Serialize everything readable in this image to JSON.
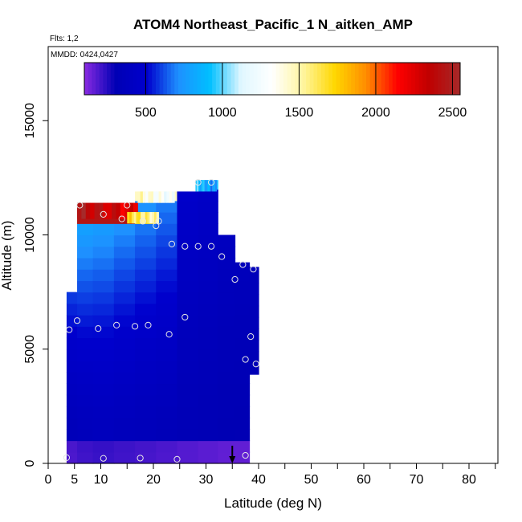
{
  "chart_data": {
    "type": "heatmap",
    "title": "ATOM4 Northeast_Pacific_1 N_aitken_AMP",
    "flights_note": "Flts: 1,2",
    "date_note": "MMDD: 0424,0427",
    "xlabel": "Latitude (deg N)",
    "ylabel": "Altitude (m)",
    "xlim": [
      0,
      85
    ],
    "ylim": [
      0,
      18000
    ],
    "x_ticks": [
      0,
      5,
      10,
      20,
      30,
      40,
      50,
      60,
      70,
      80
    ],
    "x_minor_ticks": [
      15,
      25,
      35,
      45,
      55,
      65,
      75,
      85
    ],
    "y_ticks": [
      0,
      5000,
      10000,
      15000
    ],
    "colorbar": {
      "min": 100,
      "max": 2550,
      "ticks": [
        500,
        1000,
        1500,
        2000,
        2500
      ],
      "colors": [
        "#8a2be2",
        "#0000b4",
        "#0000cd",
        "#1e90ff",
        "#00bfff",
        "#e0f7ff",
        "#ffffff",
        "#fff59d",
        "#ffd700",
        "#ff8c00",
        "#ff0000",
        "#c00000",
        "#a52a2a"
      ]
    },
    "columns": [
      {
        "lat": 4.5,
        "alt_min": 0,
        "alt_max": 7500,
        "base": 330
      },
      {
        "lat": 6.5,
        "alt_min": 0,
        "alt_max": 11400,
        "base": 350
      },
      {
        "lat": 10.5,
        "alt_min": 0,
        "alt_max": 11400,
        "base": 360
      },
      {
        "lat": 14.5,
        "alt_min": 0,
        "alt_max": 11400,
        "base": 350
      },
      {
        "lat": 18.5,
        "alt_min": 0,
        "alt_max": 11900,
        "base": 340
      },
      {
        "lat": 22.5,
        "alt_min": 0,
        "alt_max": 11900,
        "base": 330
      },
      {
        "lat": 26.5,
        "alt_min": 0,
        "alt_max": 11900,
        "base": 320
      },
      {
        "lat": 30.5,
        "alt_min": 0,
        "alt_max": 12400,
        "base": 310
      },
      {
        "lat": 34.0,
        "alt_min": 0,
        "alt_max": 10000,
        "base": 300
      },
      {
        "lat": 37.0,
        "alt_min": 0,
        "alt_max": 8800,
        "base": 300
      },
      {
        "lat": 39.5,
        "alt_min": 3900,
        "alt_max": 8600,
        "base": 300
      }
    ],
    "hotspots": [
      {
        "lat0": 5.5,
        "lat1": 17,
        "alt0": 10700,
        "alt1": 11400,
        "value": 2450
      },
      {
        "lat0": 15,
        "lat1": 21,
        "alt0": 10500,
        "alt1": 11000,
        "value": 1700
      },
      {
        "lat0": 17,
        "lat1": 24,
        "alt0": 11400,
        "alt1": 11900,
        "value": 1450
      },
      {
        "lat0": 28,
        "lat1": 32,
        "alt0": 11900,
        "alt1": 12400,
        "value": 950
      }
    ],
    "obs_points": [
      {
        "lat": 3.5,
        "alt": 250
      },
      {
        "lat": 10.5,
        "alt": 220
      },
      {
        "lat": 17.5,
        "alt": 230
      },
      {
        "lat": 24.5,
        "alt": 180
      },
      {
        "lat": 37.5,
        "alt": 350
      },
      {
        "lat": 4,
        "alt": 5850
      },
      {
        "lat": 5.5,
        "alt": 6250
      },
      {
        "lat": 9.5,
        "alt": 5900
      },
      {
        "lat": 13,
        "alt": 6050
      },
      {
        "lat": 16.5,
        "alt": 6000
      },
      {
        "lat": 19,
        "alt": 6050
      },
      {
        "lat": 23,
        "alt": 5650
      },
      {
        "lat": 26,
        "alt": 6400
      },
      {
        "lat": 37.5,
        "alt": 4550
      },
      {
        "lat": 38.5,
        "alt": 5550
      },
      {
        "lat": 39.5,
        "alt": 4350
      },
      {
        "lat": 6,
        "alt": 11300
      },
      {
        "lat": 10.5,
        "alt": 10900
      },
      {
        "lat": 14,
        "alt": 10700
      },
      {
        "lat": 15,
        "alt": 11300
      },
      {
        "lat": 18,
        "alt": 10600
      },
      {
        "lat": 20.5,
        "alt": 10400
      },
      {
        "lat": 21,
        "alt": 10600
      },
      {
        "lat": 23.5,
        "alt": 9600
      },
      {
        "lat": 26,
        "alt": 9500
      },
      {
        "lat": 28.5,
        "alt": 9500
      },
      {
        "lat": 31,
        "alt": 9500
      },
      {
        "lat": 33,
        "alt": 9050
      },
      {
        "lat": 35.5,
        "alt": 8050
      },
      {
        "lat": 37,
        "alt": 8700
      },
      {
        "lat": 39,
        "alt": 8500
      },
      {
        "lat": 28.5,
        "alt": 12300
      },
      {
        "lat": 31,
        "alt": 12300
      }
    ],
    "arrow_lat": 35
  }
}
